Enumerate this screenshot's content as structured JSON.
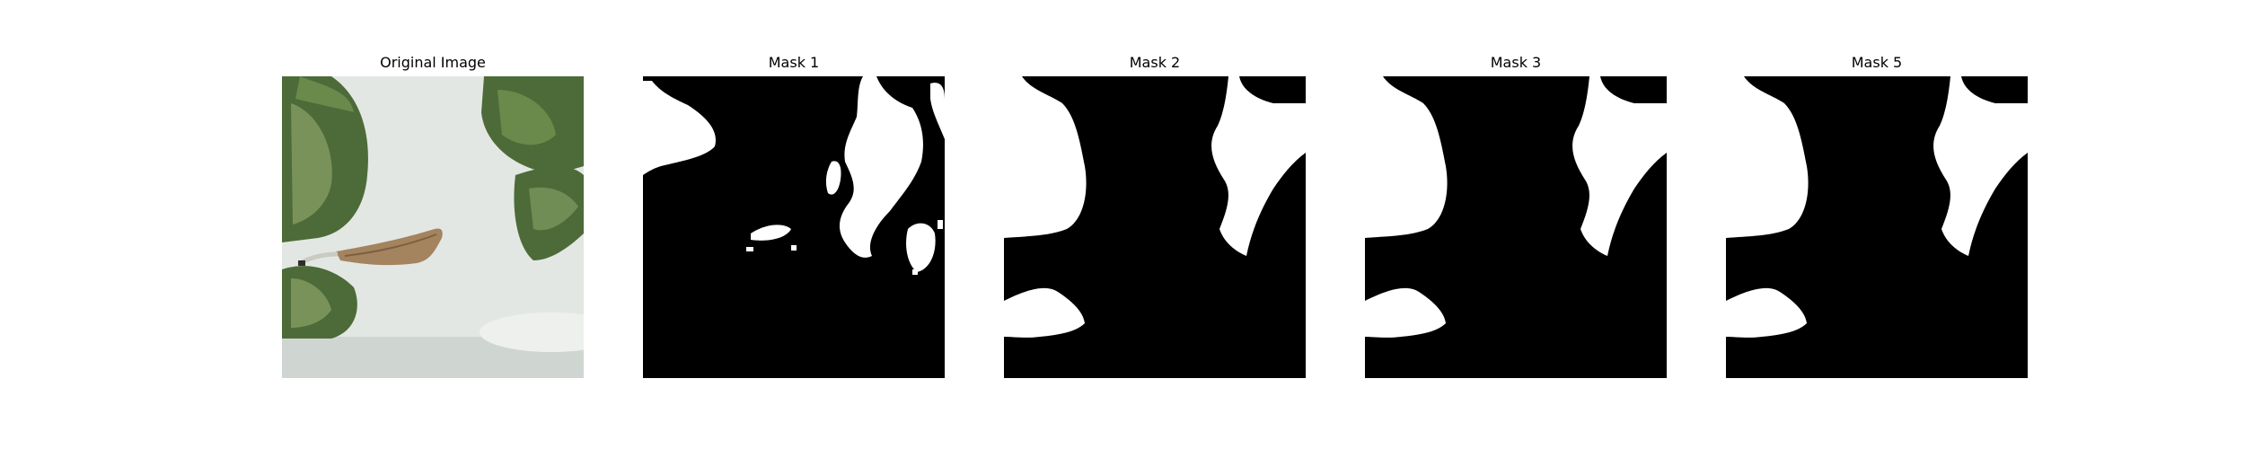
{
  "panels": [
    {
      "title": "Original Image",
      "kind": "photo-leaves"
    },
    {
      "title": "Mask 1",
      "kind": "binary-mask"
    },
    {
      "title": "Mask 2",
      "kind": "binary-mask"
    },
    {
      "title": "Mask 3",
      "kind": "binary-mask"
    },
    {
      "title": "Mask 5",
      "kind": "binary-mask"
    }
  ],
  "colors": {
    "background": "#ffffff",
    "mask_background": "#000000",
    "mask_foreground": "#ffffff",
    "photo_backdrop": "#dfe3de",
    "leaf_dark": "#4d6b38",
    "leaf_light": "#8aa36a",
    "dry_leaf": "#a4835f"
  }
}
